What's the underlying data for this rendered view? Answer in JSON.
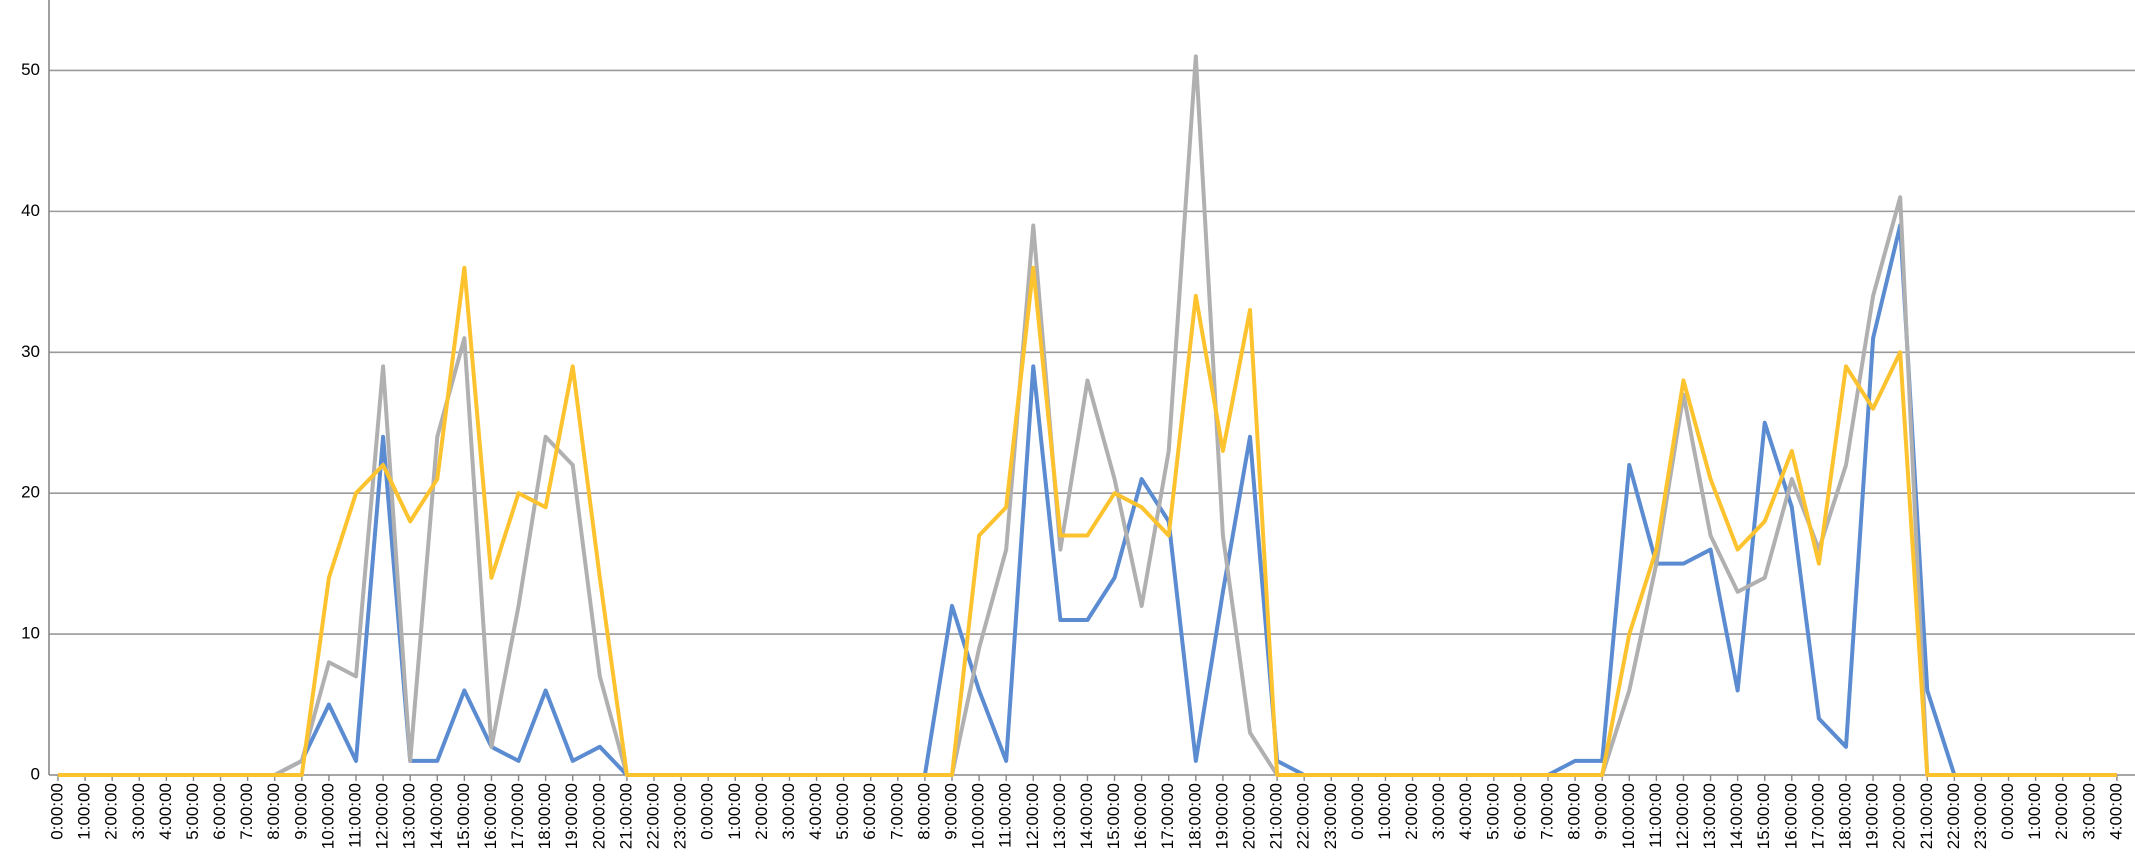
{
  "chart_data": {
    "type": "line",
    "categories": [
      "0:00:00",
      "1:00:00",
      "2:00:00",
      "3:00:00",
      "4:00:00",
      "5:00:00",
      "6:00:00",
      "7:00:00",
      "8:00:00",
      "9:00:00",
      "10:00:00",
      "11:00:00",
      "12:00:00",
      "13:00:00",
      "14:00:00",
      "15:00:00",
      "16:00:00",
      "17:00:00",
      "18:00:00",
      "19:00:00",
      "20:00:00",
      "21:00:00",
      "22:00:00",
      "23:00:00",
      "0:00:00",
      "1:00:00",
      "2:00:00",
      "3:00:00",
      "4:00:00",
      "5:00:00",
      "6:00:00",
      "7:00:00",
      "8:00:00",
      "9:00:00",
      "10:00:00",
      "11:00:00",
      "12:00:00",
      "13:00:00",
      "14:00:00",
      "15:00:00",
      "16:00:00",
      "17:00:00",
      "18:00:00",
      "19:00:00",
      "20:00:00",
      "21:00:00",
      "22:00:00",
      "23:00:00",
      "0:00:00",
      "1:00:00",
      "2:00:00",
      "3:00:00",
      "4:00:00",
      "5:00:00",
      "6:00:00",
      "7:00:00",
      "8:00:00",
      "9:00:00",
      "10:00:00",
      "11:00:00",
      "12:00:00",
      "13:00:00",
      "14:00:00",
      "15:00:00",
      "16:00:00",
      "17:00:00",
      "18:00:00",
      "19:00:00",
      "20:00:00",
      "21:00:00",
      "22:00:00",
      "23:00:00",
      "0:00:00",
      "1:00:00",
      "2:00:00",
      "3:00:00",
      "4:00:00"
    ],
    "series": [
      {
        "color": "#5b8bd0",
        "values": [
          0,
          0,
          0,
          0,
          0,
          0,
          0,
          0,
          0,
          1,
          5,
          1,
          24,
          1,
          1,
          6,
          2,
          1,
          6,
          1,
          2,
          0,
          0,
          0,
          0,
          0,
          0,
          0,
          0,
          0,
          0,
          0,
          0,
          12,
          6,
          1,
          29,
          11,
          11,
          14,
          21,
          18,
          1,
          13,
          24,
          1,
          0,
          0,
          0,
          0,
          0,
          0,
          0,
          0,
          0,
          0,
          1,
          1,
          22,
          15,
          15,
          16,
          6,
          25,
          19,
          4,
          2,
          31,
          39,
          6,
          0,
          0,
          0,
          0,
          0,
          0,
          0
        ]
      },
      {
        "color": "#b0b0b0",
        "values": [
          0,
          0,
          0,
          0,
          0,
          0,
          0,
          0,
          0,
          1,
          8,
          7,
          29,
          1,
          24,
          31,
          2,
          12,
          24,
          22,
          7,
          0,
          0,
          0,
          0,
          0,
          0,
          0,
          0,
          0,
          0,
          0,
          0,
          0,
          9,
          16,
          39,
          16,
          28,
          21,
          12,
          23,
          51,
          17,
          3,
          0,
          0,
          0,
          0,
          0,
          0,
          0,
          0,
          0,
          0,
          0,
          0,
          0,
          6,
          15,
          27,
          17,
          13,
          14,
          21,
          16,
          22,
          34,
          41,
          0,
          0,
          0,
          0,
          0,
          0,
          0,
          0
        ]
      },
      {
        "color": "#fdc32f",
        "values": [
          0,
          0,
          0,
          0,
          0,
          0,
          0,
          0,
          0,
          0,
          14,
          20,
          22,
          18,
          21,
          36,
          14,
          20,
          19,
          29,
          14,
          0,
          0,
          0,
          0,
          0,
          0,
          0,
          0,
          0,
          0,
          0,
          0,
          0,
          17,
          19,
          36,
          17,
          17,
          20,
          19,
          17,
          34,
          23,
          33,
          0,
          0,
          0,
          0,
          0,
          0,
          0,
          0,
          0,
          0,
          0,
          0,
          0,
          10,
          16,
          28,
          21,
          16,
          18,
          23,
          15,
          29,
          26,
          30,
          0,
          0,
          0,
          0,
          0,
          0,
          0,
          0
        ]
      }
    ],
    "ylim": [
      0,
      55
    ],
    "yticks": [
      0,
      10,
      20,
      30,
      40,
      50
    ],
    "grid": true
  }
}
